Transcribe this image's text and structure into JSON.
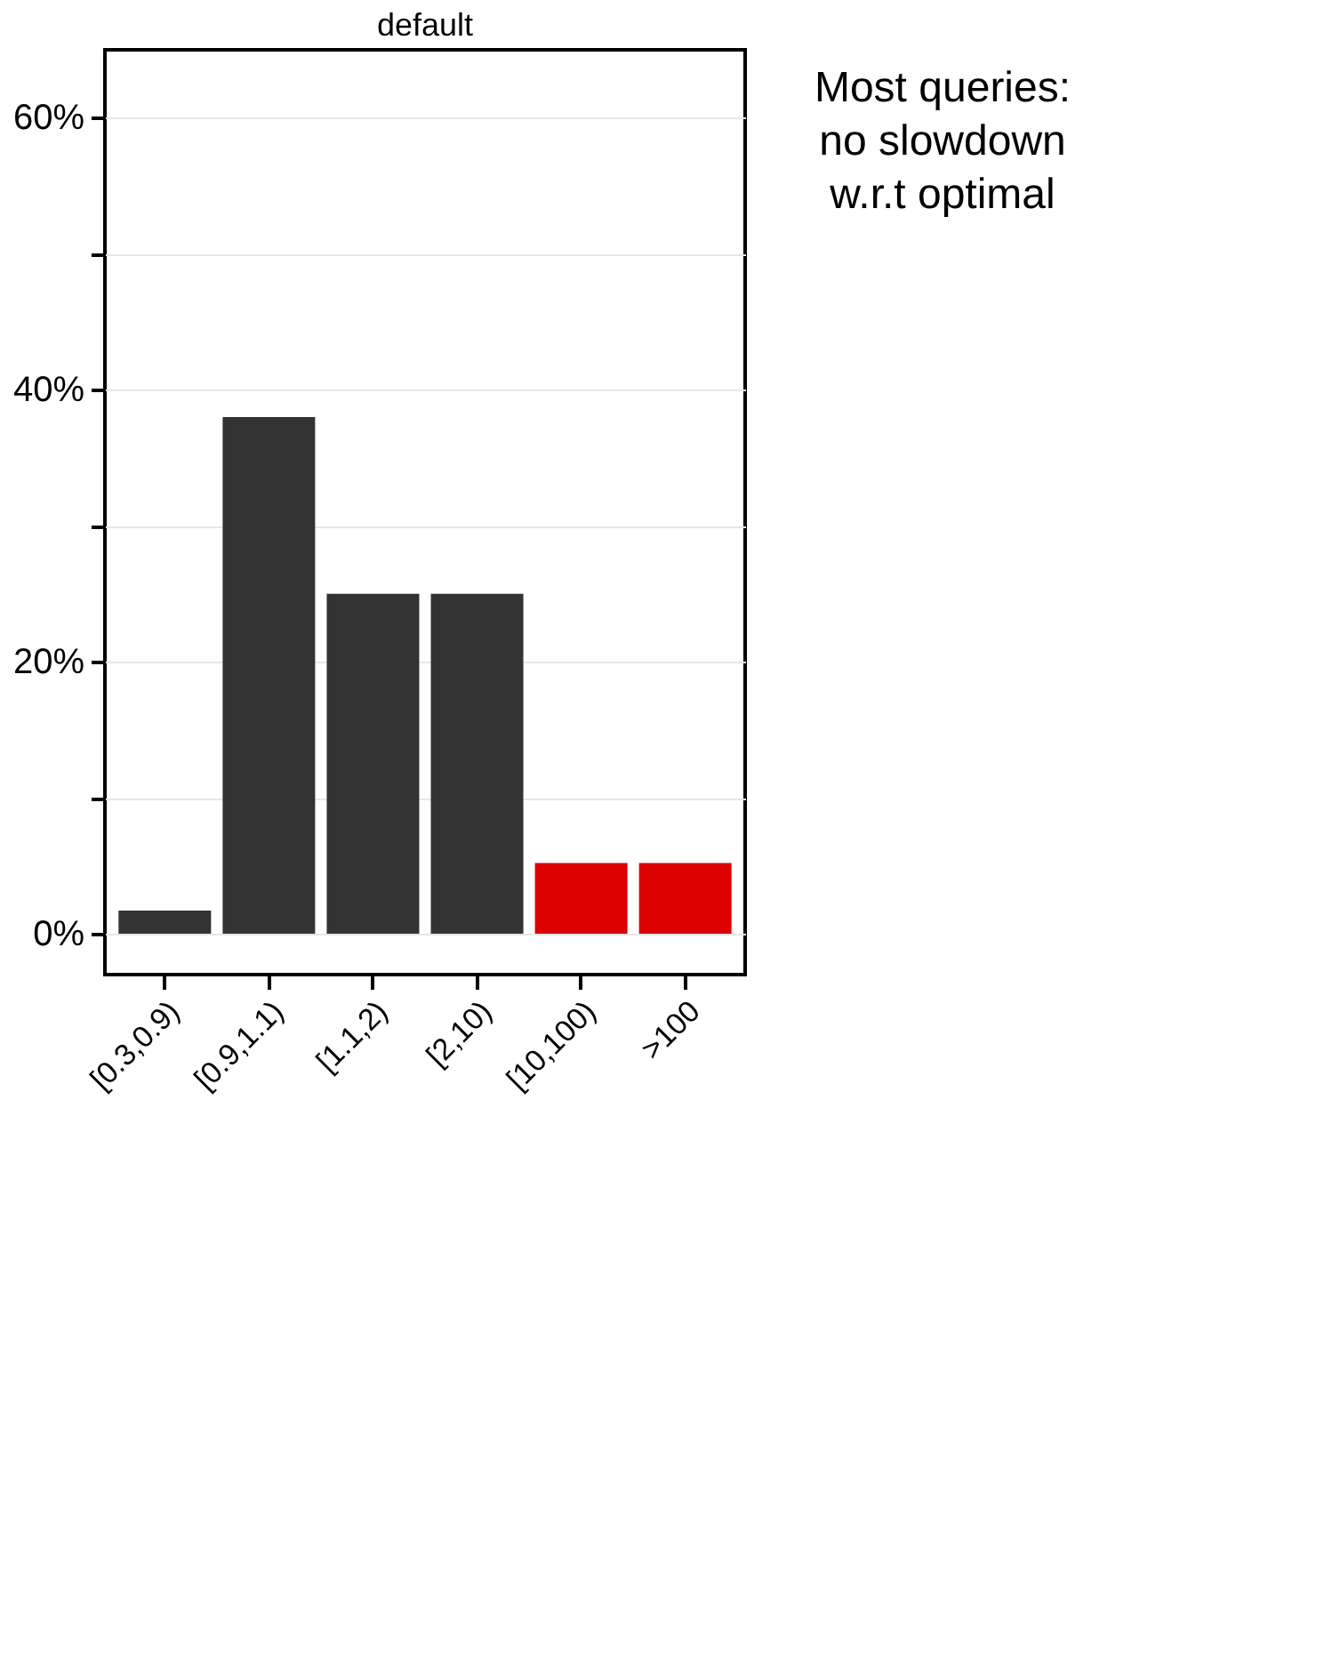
{
  "chart_data": {
    "type": "bar",
    "title": "default",
    "categories": [
      "[0.3,0.9)",
      "[0.9,1.1)",
      "[1.1,2)",
      "[2,10)",
      "[10,100)",
      ">100"
    ],
    "values": [
      1.7,
      38,
      25,
      25,
      5.2,
      5.2
    ],
    "colors": [
      "#333333",
      "#333333",
      "#333333",
      "#333333",
      "#dd0000",
      "#dd0000"
    ],
    "ylim": [
      -3,
      65
    ],
    "yticks": [
      {
        "value": 0,
        "label": "0%"
      },
      {
        "value": 10,
        "label": null
      },
      {
        "value": 20,
        "label": "20%"
      },
      {
        "value": 30,
        "label": null
      },
      {
        "value": 40,
        "label": "40%"
      },
      {
        "value": 50,
        "label": null
      },
      {
        "value": 60,
        "label": "60%"
      }
    ],
    "grid": "y",
    "annotations": [
      "Most queries: no slowdown w.r.t optimal"
    ]
  }
}
